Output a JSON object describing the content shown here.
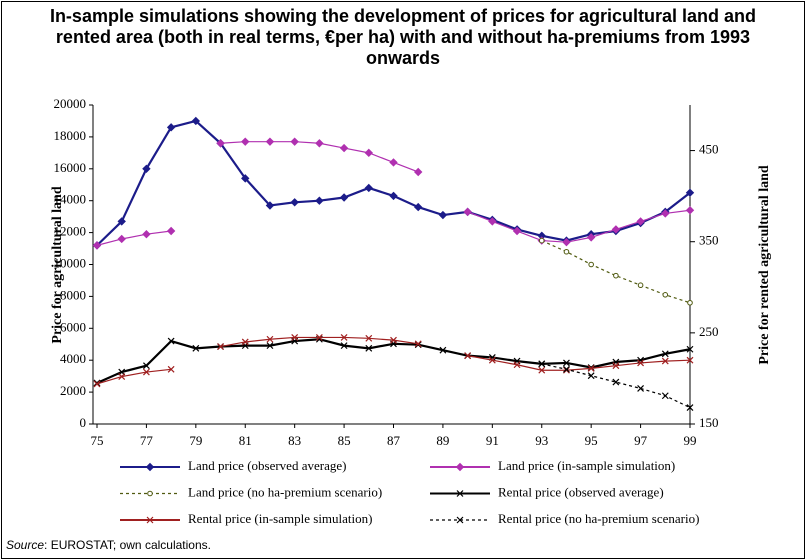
{
  "chart_data": {
    "type": "line",
    "title": "In-sample simulations showing the development of prices for agricultural land and rented area (both in real terms, €per ha) with and without ha-premiums from 1993 onwards",
    "ylabel": "Price for agricultural land",
    "y2label": "Price for rented agricultural land",
    "x": [
      75,
      76,
      77,
      78,
      79,
      80,
      81,
      82,
      83,
      84,
      85,
      86,
      87,
      88,
      89,
      90,
      91,
      92,
      93,
      94,
      95,
      96,
      97,
      98,
      99
    ],
    "xlim": [
      75,
      99
    ],
    "xticks": [
      75,
      77,
      79,
      81,
      83,
      85,
      87,
      89,
      91,
      93,
      95,
      97,
      99
    ],
    "ylim": [
      0,
      20000
    ],
    "yticks": [
      0,
      2000,
      4000,
      6000,
      8000,
      10000,
      12000,
      14000,
      16000,
      18000,
      20000
    ],
    "y2lim": [
      150,
      500
    ],
    "y2ticks": [
      150,
      250,
      350,
      450
    ],
    "series": [
      {
        "name": "Land price (observed average)",
        "color": "#1c1c8a",
        "marker": "diamond",
        "dash": false,
        "values": [
          11200,
          12700,
          16000,
          18600,
          19000,
          17600,
          15400,
          13700,
          13900,
          14000,
          14200,
          14800,
          14300,
          13600,
          13100,
          13300,
          12800,
          12200,
          11800,
          11500,
          11900,
          12100,
          12600,
          13300,
          14500
        ]
      },
      {
        "name": "Land price (in-sample simulation)",
        "color": "#b030b0",
        "marker": "diamond",
        "dash": false,
        "values": [
          11200,
          11600,
          11900,
          12100,
          null,
          17600,
          17700,
          17700,
          17700,
          17600,
          17300,
          17000,
          16400,
          15800,
          null,
          13300,
          12700,
          12100,
          11500,
          11400,
          11700,
          12200,
          12700,
          13200,
          13400
        ]
      },
      {
        "name": "Land price (no ha-premium scenario)",
        "color": "#505a10",
        "marker": "circle",
        "dash": true,
        "values": [
          null,
          null,
          null,
          null,
          null,
          null,
          null,
          null,
          null,
          null,
          null,
          null,
          null,
          null,
          null,
          null,
          null,
          null,
          11500,
          10800,
          10000,
          9300,
          8700,
          8100,
          7600
        ]
      },
      {
        "name": "Rental price (observed average)",
        "color": "#000000",
        "marker": "cross",
        "dash": false,
        "axis": "y2",
        "values": [
          195,
          207,
          214,
          241,
          233,
          235,
          236,
          236,
          241,
          243,
          236,
          233,
          238,
          237,
          231,
          225,
          223,
          219,
          216,
          217,
          212,
          218,
          220,
          227,
          232
        ]
      },
      {
        "name": "Rental price (in-sample simulation)",
        "color": "#a02020",
        "marker": "cross",
        "dash": false,
        "axis": "y2",
        "values": [
          194,
          202,
          207,
          210,
          null,
          235,
          240,
          243,
          245,
          245,
          245,
          244,
          242,
          238,
          null,
          225,
          220,
          215,
          209,
          209,
          211,
          214,
          217,
          219,
          220
        ]
      },
      {
        "name": "Rental price (no ha-premium scenario)",
        "color": "#000000",
        "marker": "cross",
        "dash": true,
        "axis": "y2",
        "values": [
          null,
          null,
          null,
          null,
          null,
          null,
          null,
          null,
          null,
          null,
          null,
          null,
          null,
          null,
          null,
          null,
          null,
          null,
          216,
          210,
          203,
          196,
          189,
          181,
          168
        ]
      }
    ],
    "source_label": "Source",
    "source_text": ": EUROSTAT; own calculations."
  }
}
